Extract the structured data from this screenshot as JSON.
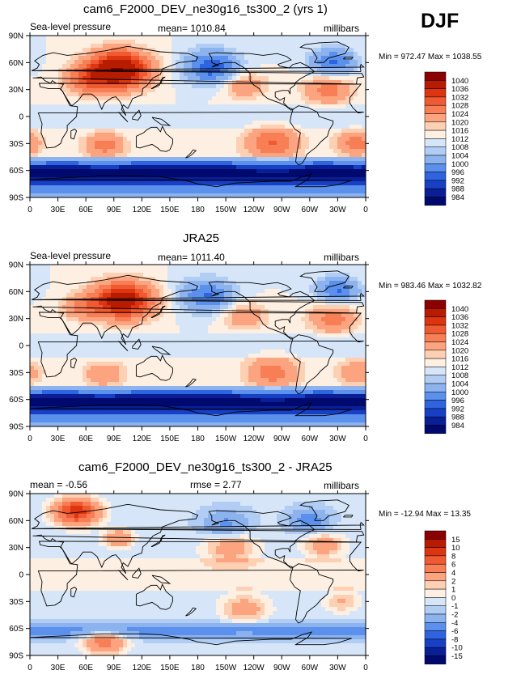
{
  "season": "DJF",
  "chart_data": [
    {
      "type": "heatmap",
      "title": "cam6_F2000_DEV_ne30g16_ts300_2 (yrs 1)",
      "left_label": "Sea-level pressure",
      "center_label": "mean= 1010.84",
      "right_label": "millibars",
      "minmax": "Min = 972.47 Max = 1038.55",
      "x_ticks": [
        "0",
        "30E",
        "60E",
        "90E",
        "120E",
        "150E",
        "180",
        "150W",
        "120W",
        "90W",
        "60W",
        "30W",
        "0"
      ],
      "y_ticks": [
        "90N",
        "60N",
        "30N",
        "0",
        "30S",
        "60S",
        "90S"
      ],
      "levels": [
        "1040",
        "1036",
        "1032",
        "1028",
        "1024",
        "1020",
        "1016",
        "1012",
        "1008",
        "1004",
        "1000",
        "996",
        "992",
        "988",
        "984"
      ],
      "colors": [
        "#8b0000",
        "#b81c00",
        "#dc3510",
        "#f05a32",
        "#f77e55",
        "#fba47f",
        "#fdd0b4",
        "#fdf0e3",
        "#d6e6f8",
        "#b2cdf3",
        "#8cb3ee",
        "#5b90ec",
        "#2f64e0",
        "#1840c4",
        "#0a1f96",
        "#000a6e"
      ],
      "fields": [
        {
          "lat": 52,
          "lon": 95,
          "s": 20,
          "a": 24
        },
        {
          "lat": 40,
          "lon": 60,
          "s": 15,
          "a": 8
        },
        {
          "lat": 30,
          "lon": -40,
          "s": 16,
          "a": 8
        },
        {
          "lat": 35,
          "lon": -130,
          "s": 15,
          "a": 6
        },
        {
          "lat": 55,
          "lon": -165,
          "s": 18,
          "a": -12
        },
        {
          "lat": 60,
          "lon": -35,
          "s": 15,
          "a": -10
        },
        {
          "lat": -30,
          "lon": -100,
          "s": 18,
          "a": 10
        },
        {
          "lat": -30,
          "lon": -10,
          "s": 14,
          "a": 8
        },
        {
          "lat": -32,
          "lon": 80,
          "s": 14,
          "a": 8
        }
      ]
    },
    {
      "type": "heatmap",
      "title": "JRA25",
      "left_label": "Sea-level pressure",
      "center_label": "mean= 1011.40",
      "right_label": "millibars",
      "minmax": "Min = 983.46 Max = 1032.82",
      "x_ticks": [
        "0",
        "30E",
        "60E",
        "90E",
        "120E",
        "150E",
        "180",
        "150W",
        "120W",
        "90W",
        "60W",
        "30W",
        "0"
      ],
      "y_ticks": [
        "90N",
        "60N",
        "30N",
        "0",
        "30S",
        "60S",
        "90S"
      ],
      "levels": [
        "1040",
        "1036",
        "1032",
        "1028",
        "1024",
        "1020",
        "1016",
        "1012",
        "1008",
        "1004",
        "1000",
        "996",
        "992",
        "988",
        "984"
      ],
      "colors": [
        "#8b0000",
        "#b81c00",
        "#dc3510",
        "#f05a32",
        "#f77e55",
        "#fba47f",
        "#fdd0b4",
        "#fdf0e3",
        "#d6e6f8",
        "#b2cdf3",
        "#8cb3ee",
        "#5b90ec",
        "#2f64e0",
        "#1840c4",
        "#0a1f96",
        "#000a6e"
      ],
      "fields": [
        {
          "lat": 50,
          "lon": 100,
          "s": 20,
          "a": 20
        },
        {
          "lat": 42,
          "lon": 55,
          "s": 14,
          "a": 6
        },
        {
          "lat": 30,
          "lon": -35,
          "s": 16,
          "a": 8
        },
        {
          "lat": 33,
          "lon": -130,
          "s": 15,
          "a": 6
        },
        {
          "lat": 55,
          "lon": -170,
          "s": 18,
          "a": -10
        },
        {
          "lat": 62,
          "lon": -30,
          "s": 14,
          "a": -10
        },
        {
          "lat": -30,
          "lon": -100,
          "s": 18,
          "a": 8
        },
        {
          "lat": -30,
          "lon": -10,
          "s": 14,
          "a": 6
        },
        {
          "lat": -32,
          "lon": 80,
          "s": 14,
          "a": 6
        }
      ]
    },
    {
      "type": "heatmap",
      "title": "cam6_F2000_DEV_ne30g16_ts300_2 - JRA25",
      "left_label": "mean =  -0.56",
      "center_label": "rmse =    2.77",
      "right_label": "millibars",
      "minmax": "Min = -12.94 Max =  13.35",
      "x_ticks": [
        "0",
        "30E",
        "60E",
        "90E",
        "120E",
        "150E",
        "180",
        "150W",
        "120W",
        "90W",
        "60W",
        "30W",
        "0"
      ],
      "y_ticks": [
        "90N",
        "60N",
        "30N",
        "0",
        "30S",
        "60S",
        "90S"
      ],
      "levels": [
        "15",
        "10",
        "8",
        "6",
        "4",
        "2",
        "1",
        "0",
        "-1",
        "-2",
        "-4",
        "-6",
        "-8",
        "-10",
        "-15"
      ],
      "colors": [
        "#8b0000",
        "#b81c00",
        "#dc3510",
        "#f05a32",
        "#f77e55",
        "#fba47f",
        "#fdd0b4",
        "#fdf0e3",
        "#d6e6f8",
        "#b2cdf3",
        "#8cb3ee",
        "#5b90ec",
        "#2f64e0",
        "#1840c4",
        "#0a1f96",
        "#000a6e"
      ],
      "fields": [
        {
          "lat": 70,
          "lon": 50,
          "s": 15,
          "a": 10
        },
        {
          "lat": 40,
          "lon": 95,
          "s": 10,
          "a": 5
        },
        {
          "lat": 30,
          "lon": -145,
          "s": 18,
          "a": 4
        },
        {
          "lat": 55,
          "lon": -150,
          "s": 15,
          "a": -4
        },
        {
          "lat": 60,
          "lon": -60,
          "s": 12,
          "a": -5
        },
        {
          "lat": 32,
          "lon": -45,
          "s": 14,
          "a": 4
        },
        {
          "lat": -38,
          "lon": -130,
          "s": 16,
          "a": 4
        },
        {
          "lat": -30,
          "lon": -25,
          "s": 12,
          "a": 3
        },
        {
          "lat": -75,
          "lon": 80,
          "s": 14,
          "a": 6
        }
      ]
    }
  ]
}
